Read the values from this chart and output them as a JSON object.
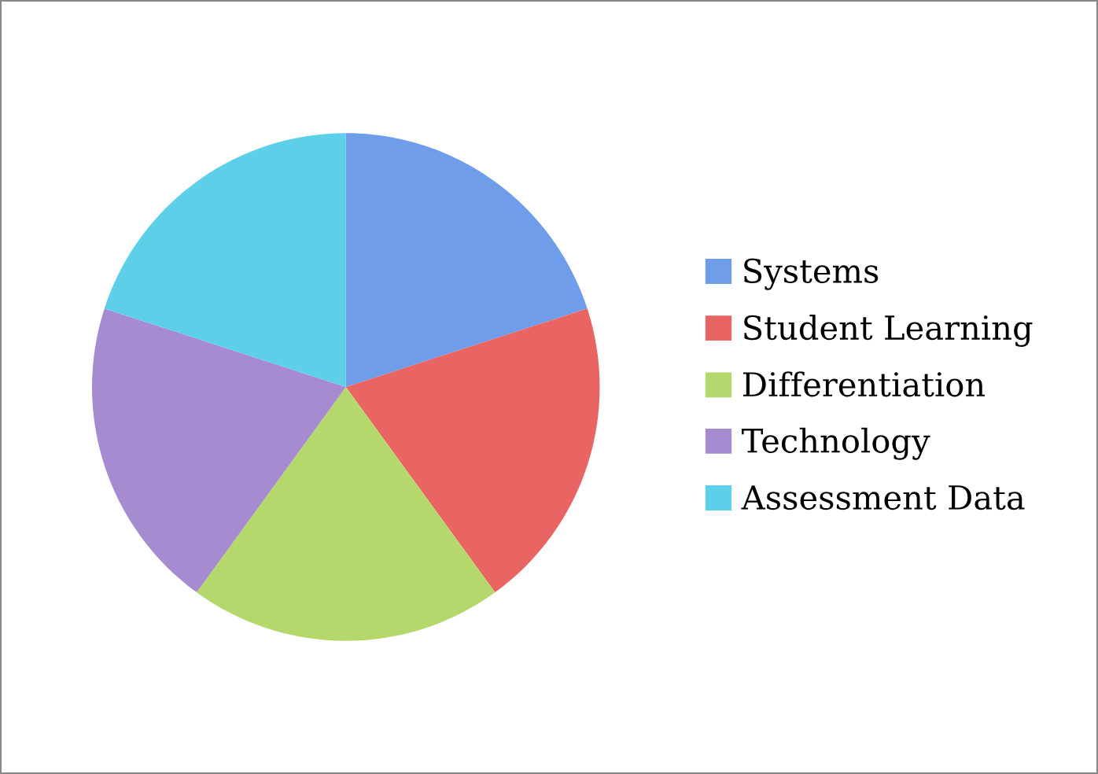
{
  "chart_data": {
    "type": "pie",
    "categories": [
      "Systems",
      "Student Learning",
      "Differentiation",
      "Technology",
      "Assessment Data"
    ],
    "values": [
      20,
      20,
      20,
      20,
      20
    ],
    "colors": [
      "#6f9de9",
      "#e86563",
      "#b4d86c",
      "#a68bd0",
      "#5ecfe9"
    ],
    "legend": "right"
  }
}
